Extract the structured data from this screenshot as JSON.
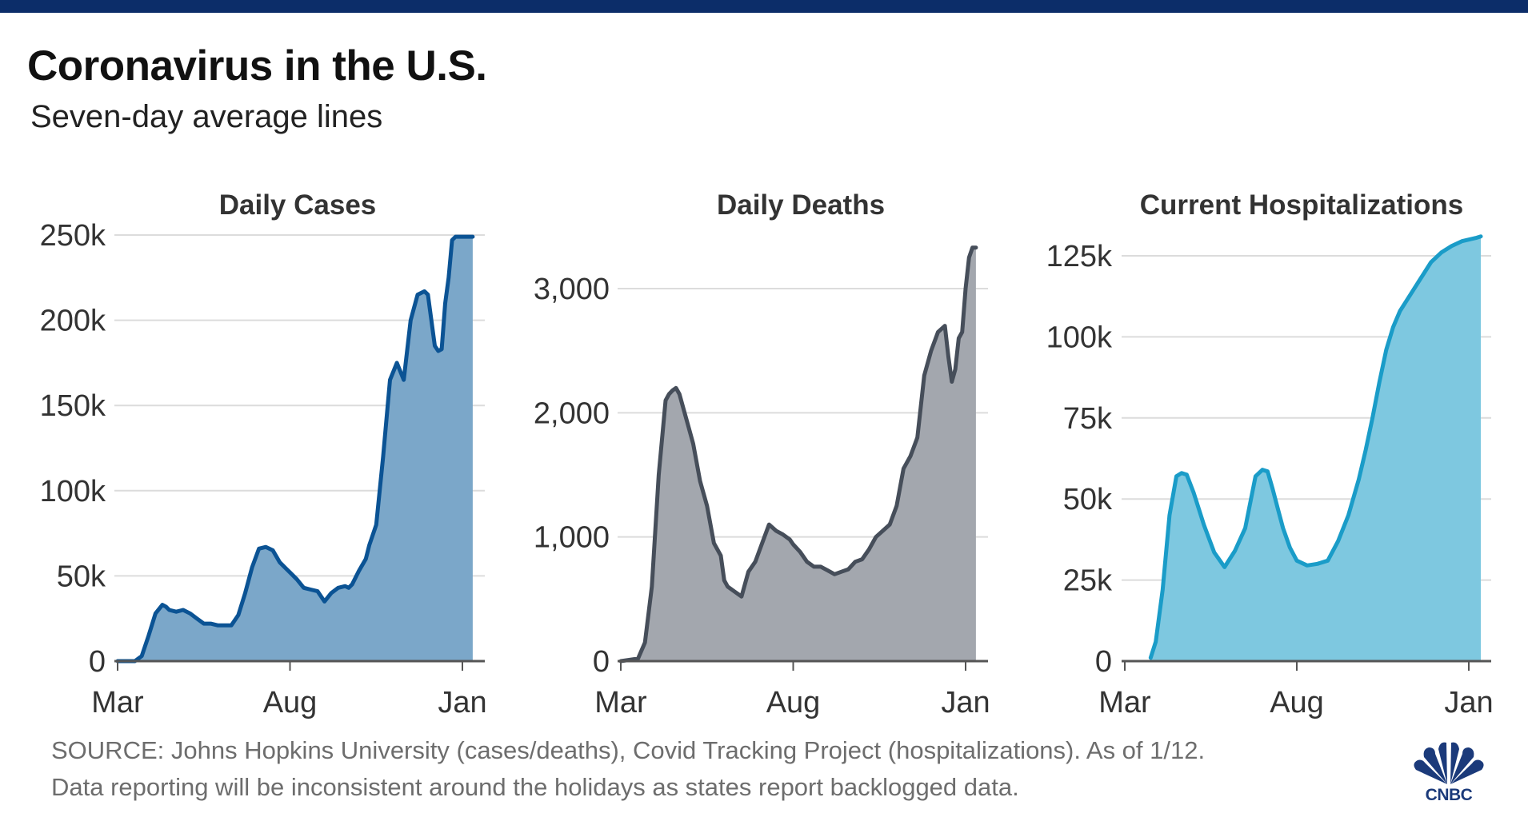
{
  "header": {
    "title": "Coronavirus in the U.S.",
    "subtitle": "Seven-day average lines"
  },
  "footer": {
    "line1": "SOURCE: Johns Hopkins University (cases/deaths), Covid Tracking Project (hospitalizations). As of 1/12.",
    "line2": "Data reporting will be inconsistent around the holidays as states report backlogged data."
  },
  "logo": {
    "text": "CNBC",
    "icon": "cnbc-peacock-icon",
    "color": "#1b3a7a"
  },
  "colors": {
    "topbar": "#0c2d69"
  },
  "chart_data": [
    {
      "id": "daily-cases",
      "type": "area",
      "title": "Daily Cases",
      "xlabel": "",
      "ylabel": "",
      "x_ticks": [
        "Mar",
        "Aug",
        "Jan"
      ],
      "x_tick_months": [
        0,
        5,
        10
      ],
      "x_range_months": [
        -0.05,
        10.35
      ],
      "y_ticks": [
        0,
        50000,
        100000,
        150000,
        200000,
        250000
      ],
      "y_tick_labels": [
        "0",
        "50k",
        "100k",
        "150k",
        "200k",
        "250k"
      ],
      "ylim": [
        0,
        250000
      ],
      "grid": true,
      "line_color": "#0b5394",
      "fill_color": "#7ba7c9",
      "x": [
        0,
        0.5,
        0.7,
        0.9,
        1.1,
        1.3,
        1.4,
        1.5,
        1.7,
        1.9,
        2.1,
        2.3,
        2.5,
        2.7,
        2.9,
        3.1,
        3.3,
        3.5,
        3.7,
        3.9,
        4.1,
        4.3,
        4.5,
        4.7,
        4.9,
        5.0,
        5.2,
        5.4,
        5.6,
        5.8,
        6.0,
        6.2,
        6.4,
        6.6,
        6.7,
        6.8,
        7.0,
        7.2,
        7.3,
        7.5,
        7.7,
        7.9,
        8.1,
        8.3,
        8.5,
        8.7,
        8.9,
        9.0,
        9.1,
        9.2,
        9.3,
        9.4,
        9.5,
        9.6,
        9.7,
        9.8,
        9.9,
        10.0,
        10.1,
        10.2,
        10.3
      ],
      "values": [
        0,
        0,
        3000,
        15000,
        28000,
        33000,
        32000,
        30000,
        29000,
        30000,
        28000,
        25000,
        22000,
        22000,
        21000,
        21000,
        21000,
        27000,
        40000,
        55000,
        66000,
        67000,
        65000,
        58000,
        54000,
        52000,
        48000,
        43000,
        42000,
        41000,
        35000,
        40000,
        43000,
        44000,
        43000,
        45000,
        53000,
        60000,
        68000,
        80000,
        120000,
        165000,
        175000,
        165000,
        200000,
        215000,
        217000,
        215000,
        200000,
        185000,
        182000,
        183000,
        210000,
        225000,
        247000,
        249000,
        249000,
        249000,
        249000,
        249000,
        249000
      ],
      "series_note": "Seven-day average"
    },
    {
      "id": "daily-deaths",
      "type": "area",
      "title": "Daily Deaths",
      "xlabel": "",
      "ylabel": "",
      "x_ticks": [
        "Mar",
        "Aug",
        "Jan"
      ],
      "x_tick_months": [
        0,
        5,
        10
      ],
      "x_range_months": [
        -0.05,
        10.35
      ],
      "y_ticks": [
        0,
        1000,
        2000,
        3000
      ],
      "y_tick_labels": [
        "0",
        "1,000",
        "2,000",
        "3,000"
      ],
      "ylim": [
        0,
        3420
      ],
      "grid": true,
      "line_color": "#464e5a",
      "fill_color": "#a3a7ae",
      "x": [
        0,
        0.5,
        0.7,
        0.9,
        1.1,
        1.3,
        1.4,
        1.5,
        1.6,
        1.7,
        1.8,
        1.9,
        2.0,
        2.1,
        2.3,
        2.5,
        2.7,
        2.9,
        3.0,
        3.1,
        3.3,
        3.5,
        3.7,
        3.9,
        4.1,
        4.3,
        4.5,
        4.7,
        4.9,
        5.0,
        5.2,
        5.4,
        5.6,
        5.8,
        6.0,
        6.2,
        6.4,
        6.6,
        6.8,
        7.0,
        7.2,
        7.4,
        7.6,
        7.8,
        8.0,
        8.2,
        8.4,
        8.6,
        8.8,
        9.0,
        9.2,
        9.4,
        9.5,
        9.6,
        9.7,
        9.8,
        9.9,
        10.0,
        10.1,
        10.2,
        10.3
      ],
      "values": [
        0,
        20,
        150,
        600,
        1500,
        2100,
        2150,
        2180,
        2200,
        2150,
        2050,
        1950,
        1850,
        1750,
        1450,
        1250,
        950,
        850,
        650,
        600,
        560,
        520,
        720,
        800,
        950,
        1100,
        1050,
        1020,
        980,
        940,
        880,
        800,
        760,
        760,
        730,
        700,
        720,
        740,
        800,
        820,
        900,
        1000,
        1050,
        1100,
        1250,
        1550,
        1650,
        1800,
        2300,
        2500,
        2650,
        2700,
        2450,
        2250,
        2350,
        2600,
        2650,
        3000,
        3250,
        3330,
        3330
      ],
      "series_note": "Seven-day average"
    },
    {
      "id": "current-hospitalizations",
      "type": "area",
      "title": "Current Hospitalizations",
      "xlabel": "",
      "ylabel": "",
      "x_ticks": [
        "Mar",
        "Aug",
        "Jan"
      ],
      "x_tick_months": [
        0,
        5,
        10
      ],
      "x_range_months": [
        -0.05,
        10.35
      ],
      "y_ticks": [
        0,
        25000,
        50000,
        75000,
        100000,
        125000
      ],
      "y_tick_labels": [
        "0",
        "25k",
        "50k",
        "75k",
        "100k",
        "125k"
      ],
      "ylim": [
        0,
        131000
      ],
      "grid": true,
      "line_color": "#1a9cc8",
      "fill_color": "#7ec8e0",
      "x": [
        0.75,
        0.9,
        1.1,
        1.3,
        1.5,
        1.65,
        1.8,
        2.0,
        2.3,
        2.6,
        2.9,
        3.2,
        3.5,
        3.8,
        4.0,
        4.15,
        4.3,
        4.45,
        4.6,
        4.8,
        5.0,
        5.3,
        5.6,
        5.9,
        6.2,
        6.5,
        6.8,
        7.0,
        7.2,
        7.4,
        7.6,
        7.8,
        8.0,
        8.3,
        8.6,
        8.9,
        9.2,
        9.5,
        9.8,
        10.0,
        10.2,
        10.35
      ],
      "values": [
        1000,
        6000,
        22000,
        45000,
        57000,
        58000,
        57500,
        52000,
        42000,
        33500,
        29000,
        34000,
        41000,
        57000,
        59000,
        58500,
        53000,
        47000,
        41000,
        35000,
        31000,
        29500,
        30000,
        31000,
        37000,
        45000,
        56000,
        65000,
        75000,
        86000,
        96000,
        103000,
        108000,
        113000,
        118000,
        123000,
        126000,
        128000,
        129500,
        130000,
        130500,
        131000
      ],
      "series_note": "Seven-day average"
    }
  ]
}
